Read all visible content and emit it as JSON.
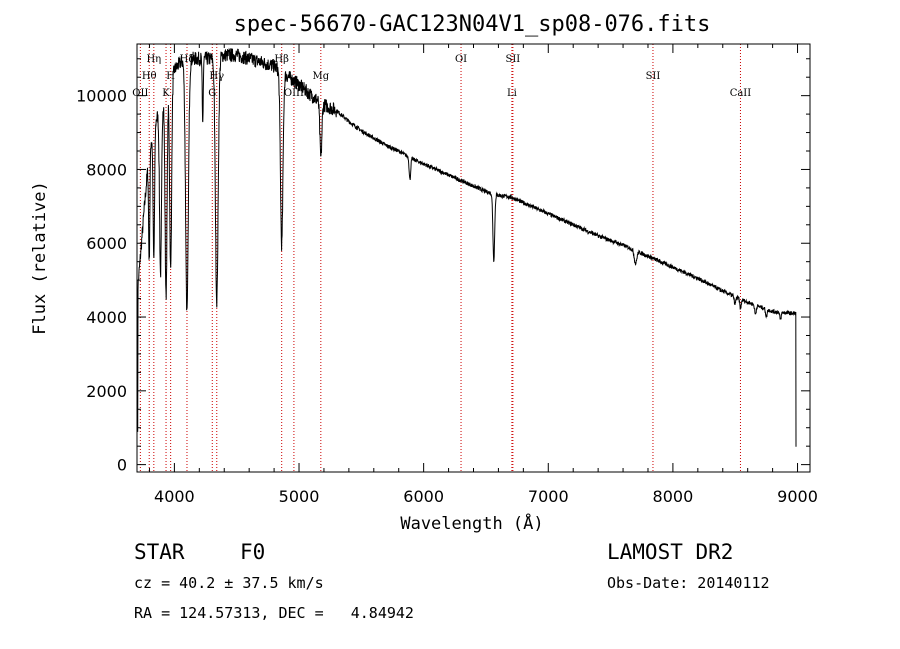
{
  "chart_data": {
    "type": "line",
    "title": "spec-56670-GAC123N04V1_sp08-076.fits",
    "xlabel": "Wavelength (Å)",
    "ylabel": "Flux (relative)",
    "xlim": [
      3700,
      9100
    ],
    "ylim": [
      -200,
      11400
    ],
    "x_ticks": [
      4000,
      5000,
      6000,
      7000,
      8000,
      9000
    ],
    "y_ticks": [
      0,
      2000,
      4000,
      6000,
      8000,
      10000
    ],
    "series": [
      {
        "name": "spectrum",
        "continuum_anchors": {
          "x": [
            3700,
            3760,
            3800,
            3850,
            3900,
            3950,
            4000,
            4050,
            4100,
            4200,
            4300,
            4400,
            4500,
            4600,
            4700,
            4800,
            4900,
            5000,
            5100,
            5200,
            5300,
            5400,
            5500,
            5600,
            5700,
            5800,
            5900,
            6000,
            6100,
            6200,
            6300,
            6400,
            6500,
            6600,
            6700,
            6800,
            6900,
            7000,
            7200,
            7400,
            7600,
            7800,
            8000,
            8200,
            8400,
            8600,
            8800,
            8960
          ],
          "y": [
            4500,
            7000,
            8600,
            9300,
            9900,
            10300,
            10700,
            10900,
            11000,
            11000,
            11000,
            11100,
            11100,
            11000,
            10900,
            10800,
            10550,
            10300,
            10000,
            9750,
            9600,
            9300,
            9050,
            8850,
            8650,
            8500,
            8300,
            8150,
            8000,
            7850,
            7700,
            7550,
            7400,
            7300,
            7250,
            7100,
            6950,
            6800,
            6500,
            6200,
            5950,
            5650,
            5350,
            5050,
            4700,
            4400,
            4150,
            4100
          ]
        },
        "absorption_lines": {
          "center": [
            3798,
            3835,
            3889,
            3933,
            3970,
            4101,
            4227,
            4340,
            4861,
            5175,
            6563,
            5890,
            7700,
            8498,
            8542,
            8662,
            8750,
            8863
          ],
          "depth": [
            3000,
            3600,
            4600,
            5600,
            5200,
            6900,
            1800,
            6600,
            4700,
            1500,
            1800,
            600,
            350,
            200,
            250,
            250,
            200,
            200
          ],
          "width": [
            5,
            6,
            8,
            8,
            8,
            11,
            4,
            11,
            10,
            8,
            7,
            6,
            10,
            6,
            6,
            6,
            6,
            6
          ]
        },
        "edge_drops": [
          {
            "x": 3705,
            "value": 900
          },
          {
            "x": 8990,
            "value": 500
          }
        ]
      }
    ],
    "line_markers": [
      {
        "label": "Hη",
        "wavelength": 3835,
        "row": 1
      },
      {
        "label": "Hθ",
        "wavelength": 3798,
        "row": 2
      },
      {
        "label": "OII",
        "wavelength": 3727,
        "row": 3
      },
      {
        "label": "H",
        "wavelength": 3970,
        "row": 2
      },
      {
        "label": "K",
        "wavelength": 3933,
        "row": 3
      },
      {
        "label": "Hδ",
        "wavelength": 4101,
        "row": 1
      },
      {
        "label": "Hγ",
        "wavelength": 4340,
        "row": 2
      },
      {
        "label": "G",
        "wavelength": 4304,
        "row": 3
      },
      {
        "label": "Hβ",
        "wavelength": 4861,
        "row": 1
      },
      {
        "label": "OIII",
        "wavelength": 4959,
        "row": 3
      },
      {
        "label": "Mg",
        "wavelength": 5175,
        "row": 2
      },
      {
        "label": "OI",
        "wavelength": 6300,
        "row": 1
      },
      {
        "label": "SII",
        "wavelength": 6716,
        "row": 1
      },
      {
        "label": "Li",
        "wavelength": 6708,
        "row": 3
      },
      {
        "label": "SII",
        "wavelength": 7840,
        "row": 2
      },
      {
        "label": "CaII",
        "wavelength": 8542,
        "row": 3
      }
    ]
  },
  "info": {
    "object_type": "STAR",
    "subclass": "F0",
    "survey": "LAMOST DR2",
    "redshift": "cz = 40.2 ± 37.5 km/s",
    "obs_date": "Obs-Date: 20140112",
    "coords": "RA = 124.57313, DEC =   4.84942"
  },
  "colors": {
    "marker_line": "#cc0000",
    "spectrum": "#000000",
    "axes": "#000000"
  }
}
